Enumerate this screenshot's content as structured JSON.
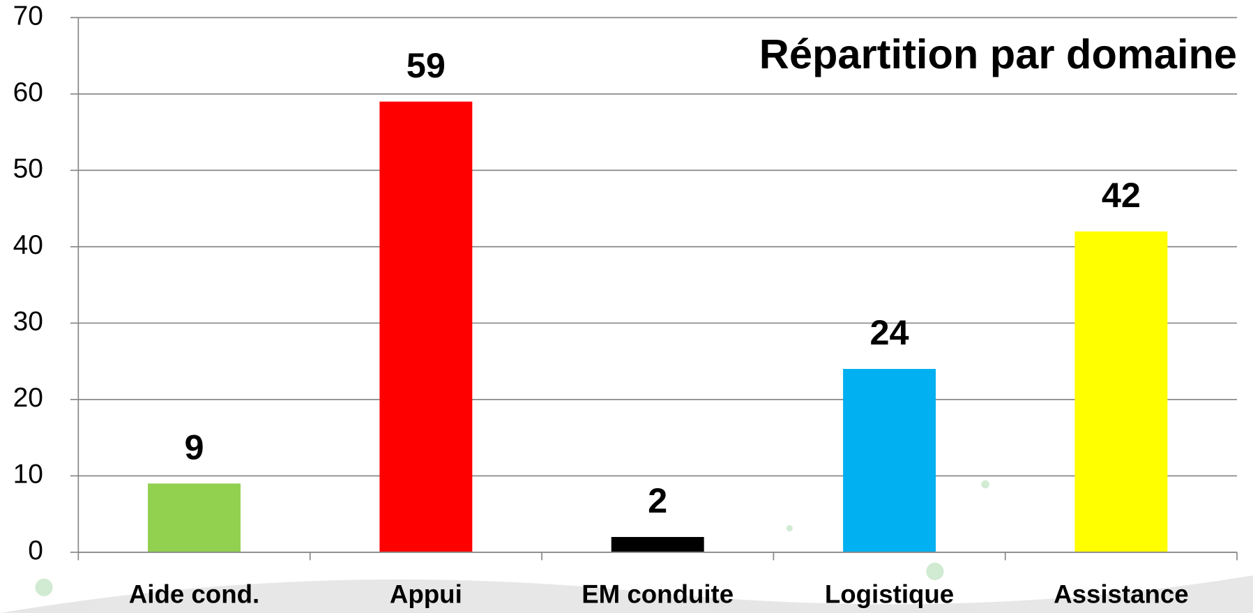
{
  "chart_data": {
    "type": "bar",
    "title": "Répartition par domaine",
    "categories": [
      "Aide cond.",
      "Appui",
      "EM conduite",
      "Logistique",
      "Assistance"
    ],
    "values": [
      9,
      59,
      2,
      24,
      42
    ],
    "colors": [
      "#92d050",
      "#ff0000",
      "#000000",
      "#00b0f0",
      "#ffff00"
    ],
    "ylim": [
      0,
      70
    ],
    "yticks": [
      0,
      10,
      20,
      30,
      40,
      50,
      60,
      70
    ],
    "grid": true
  }
}
